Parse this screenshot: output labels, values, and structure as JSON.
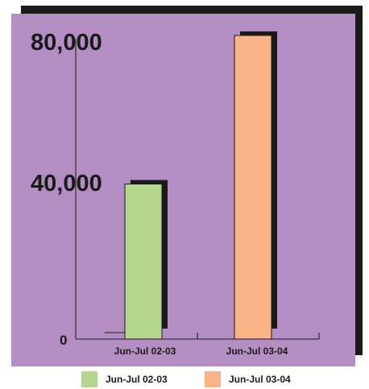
{
  "chart_data": {
    "type": "bar",
    "categories": [
      "Jun-Jul 02-03",
      "Jun-Jul 03-04"
    ],
    "series": [
      {
        "name": "Jun-Jul 02-03",
        "values": [
          40000,
          null
        ]
      },
      {
        "name": "Jun-Jul 03-04",
        "values": [
          null,
          80000
        ]
      }
    ],
    "values": [
      40000,
      80000
    ],
    "title": "",
    "xlabel": "",
    "ylabel": "",
    "ylim": [
      0,
      80000
    ],
    "yticks": [
      {
        "value": 0,
        "label": "0"
      },
      {
        "value": 40000,
        "label": "40,000"
      },
      {
        "value": 80000,
        "label": "80,000"
      }
    ],
    "grid": false,
    "legend_position": "bottom",
    "colors": {
      "background": "#b48ec3",
      "shadow": "#1a1a1a",
      "bars": [
        "#b5d68f",
        "#f9b386"
      ],
      "bar_outline": "#1a1a1a"
    }
  }
}
